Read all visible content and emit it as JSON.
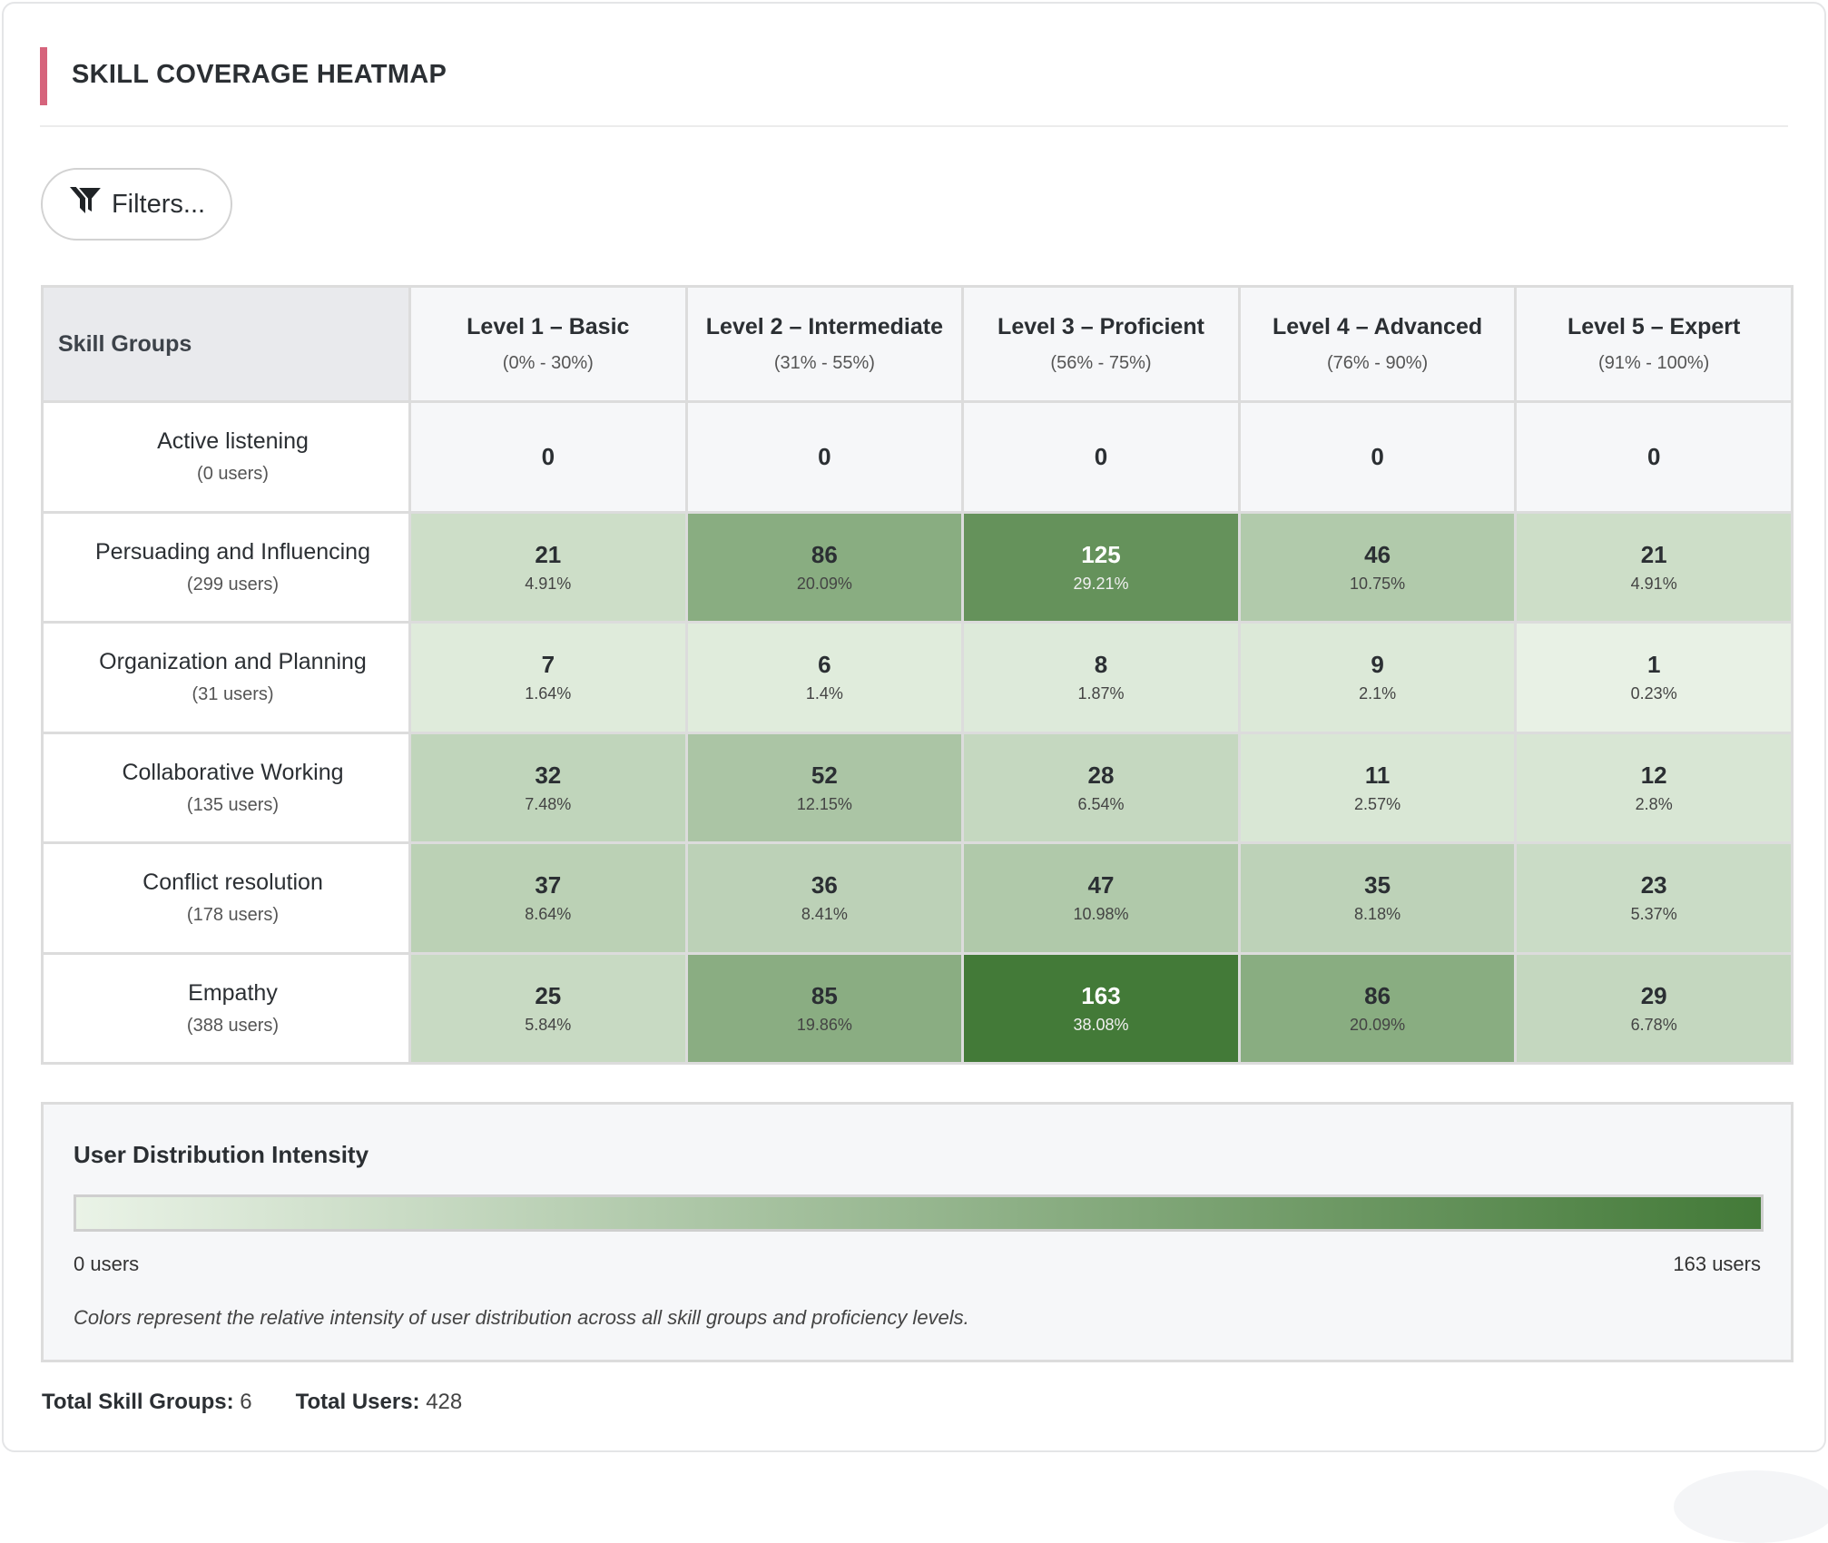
{
  "header": {
    "title": "SKILL COVERAGE HEATMAP",
    "accent_color": "#d6647c"
  },
  "toolbar": {
    "filters_label": "Filters...",
    "filters_icon": "filter-icon"
  },
  "chart_data": {
    "type": "heatmap",
    "row_header": "Skill Groups",
    "columns": [
      {
        "label": "Level 1 – Basic",
        "range": "(0% - 30%)"
      },
      {
        "label": "Level 2 – Intermediate",
        "range": "(31% - 55%)"
      },
      {
        "label": "Level 3 – Proficient",
        "range": "(56% - 75%)"
      },
      {
        "label": "Level 4 – Advanced",
        "range": "(76% - 90%)"
      },
      {
        "label": "Level 5 – Expert",
        "range": "(91% - 100%)"
      }
    ],
    "rows": [
      {
        "name": "Active listening",
        "users": "(0 users)",
        "values": [
          0,
          0,
          0,
          0,
          0
        ],
        "percents": [
          "",
          "",
          "",
          "",
          ""
        ]
      },
      {
        "name": "Persuading and Influencing",
        "users": "(299 users)",
        "values": [
          21,
          86,
          125,
          46,
          21
        ],
        "percents": [
          "4.91%",
          "20.09%",
          "29.21%",
          "10.75%",
          "4.91%"
        ]
      },
      {
        "name": "Organization and Planning",
        "users": "(31 users)",
        "values": [
          7,
          6,
          8,
          9,
          1
        ],
        "percents": [
          "1.64%",
          "1.4%",
          "1.87%",
          "2.1%",
          "0.23%"
        ]
      },
      {
        "name": "Collaborative Working",
        "users": "(135 users)",
        "values": [
          32,
          52,
          28,
          11,
          12
        ],
        "percents": [
          "7.48%",
          "12.15%",
          "6.54%",
          "2.57%",
          "2.8%"
        ]
      },
      {
        "name": "Conflict resolution",
        "users": "(178 users)",
        "values": [
          37,
          36,
          47,
          35,
          23
        ],
        "percents": [
          "8.64%",
          "8.41%",
          "10.98%",
          "8.18%",
          "5.37%"
        ]
      },
      {
        "name": "Empathy",
        "users": "(388 users)",
        "values": [
          25,
          85,
          163,
          86,
          29
        ],
        "percents": [
          "5.84%",
          "19.86%",
          "38.08%",
          "20.09%",
          "6.78%"
        ]
      }
    ],
    "color_scale": {
      "min": 0,
      "max": 163,
      "low_color": "#eaf3e7",
      "high_color": "#437a38",
      "zero_color": "#f6f7f9"
    }
  },
  "legend": {
    "title": "User Distribution Intensity",
    "min_label": "0 users",
    "max_label": "163 users",
    "note": "Colors represent the relative intensity of user distribution across all skill groups and proficiency levels."
  },
  "footer": {
    "groups_label": "Total Skill Groups:",
    "groups_value": "6",
    "users_label": "Total Users:",
    "users_value": "428"
  }
}
